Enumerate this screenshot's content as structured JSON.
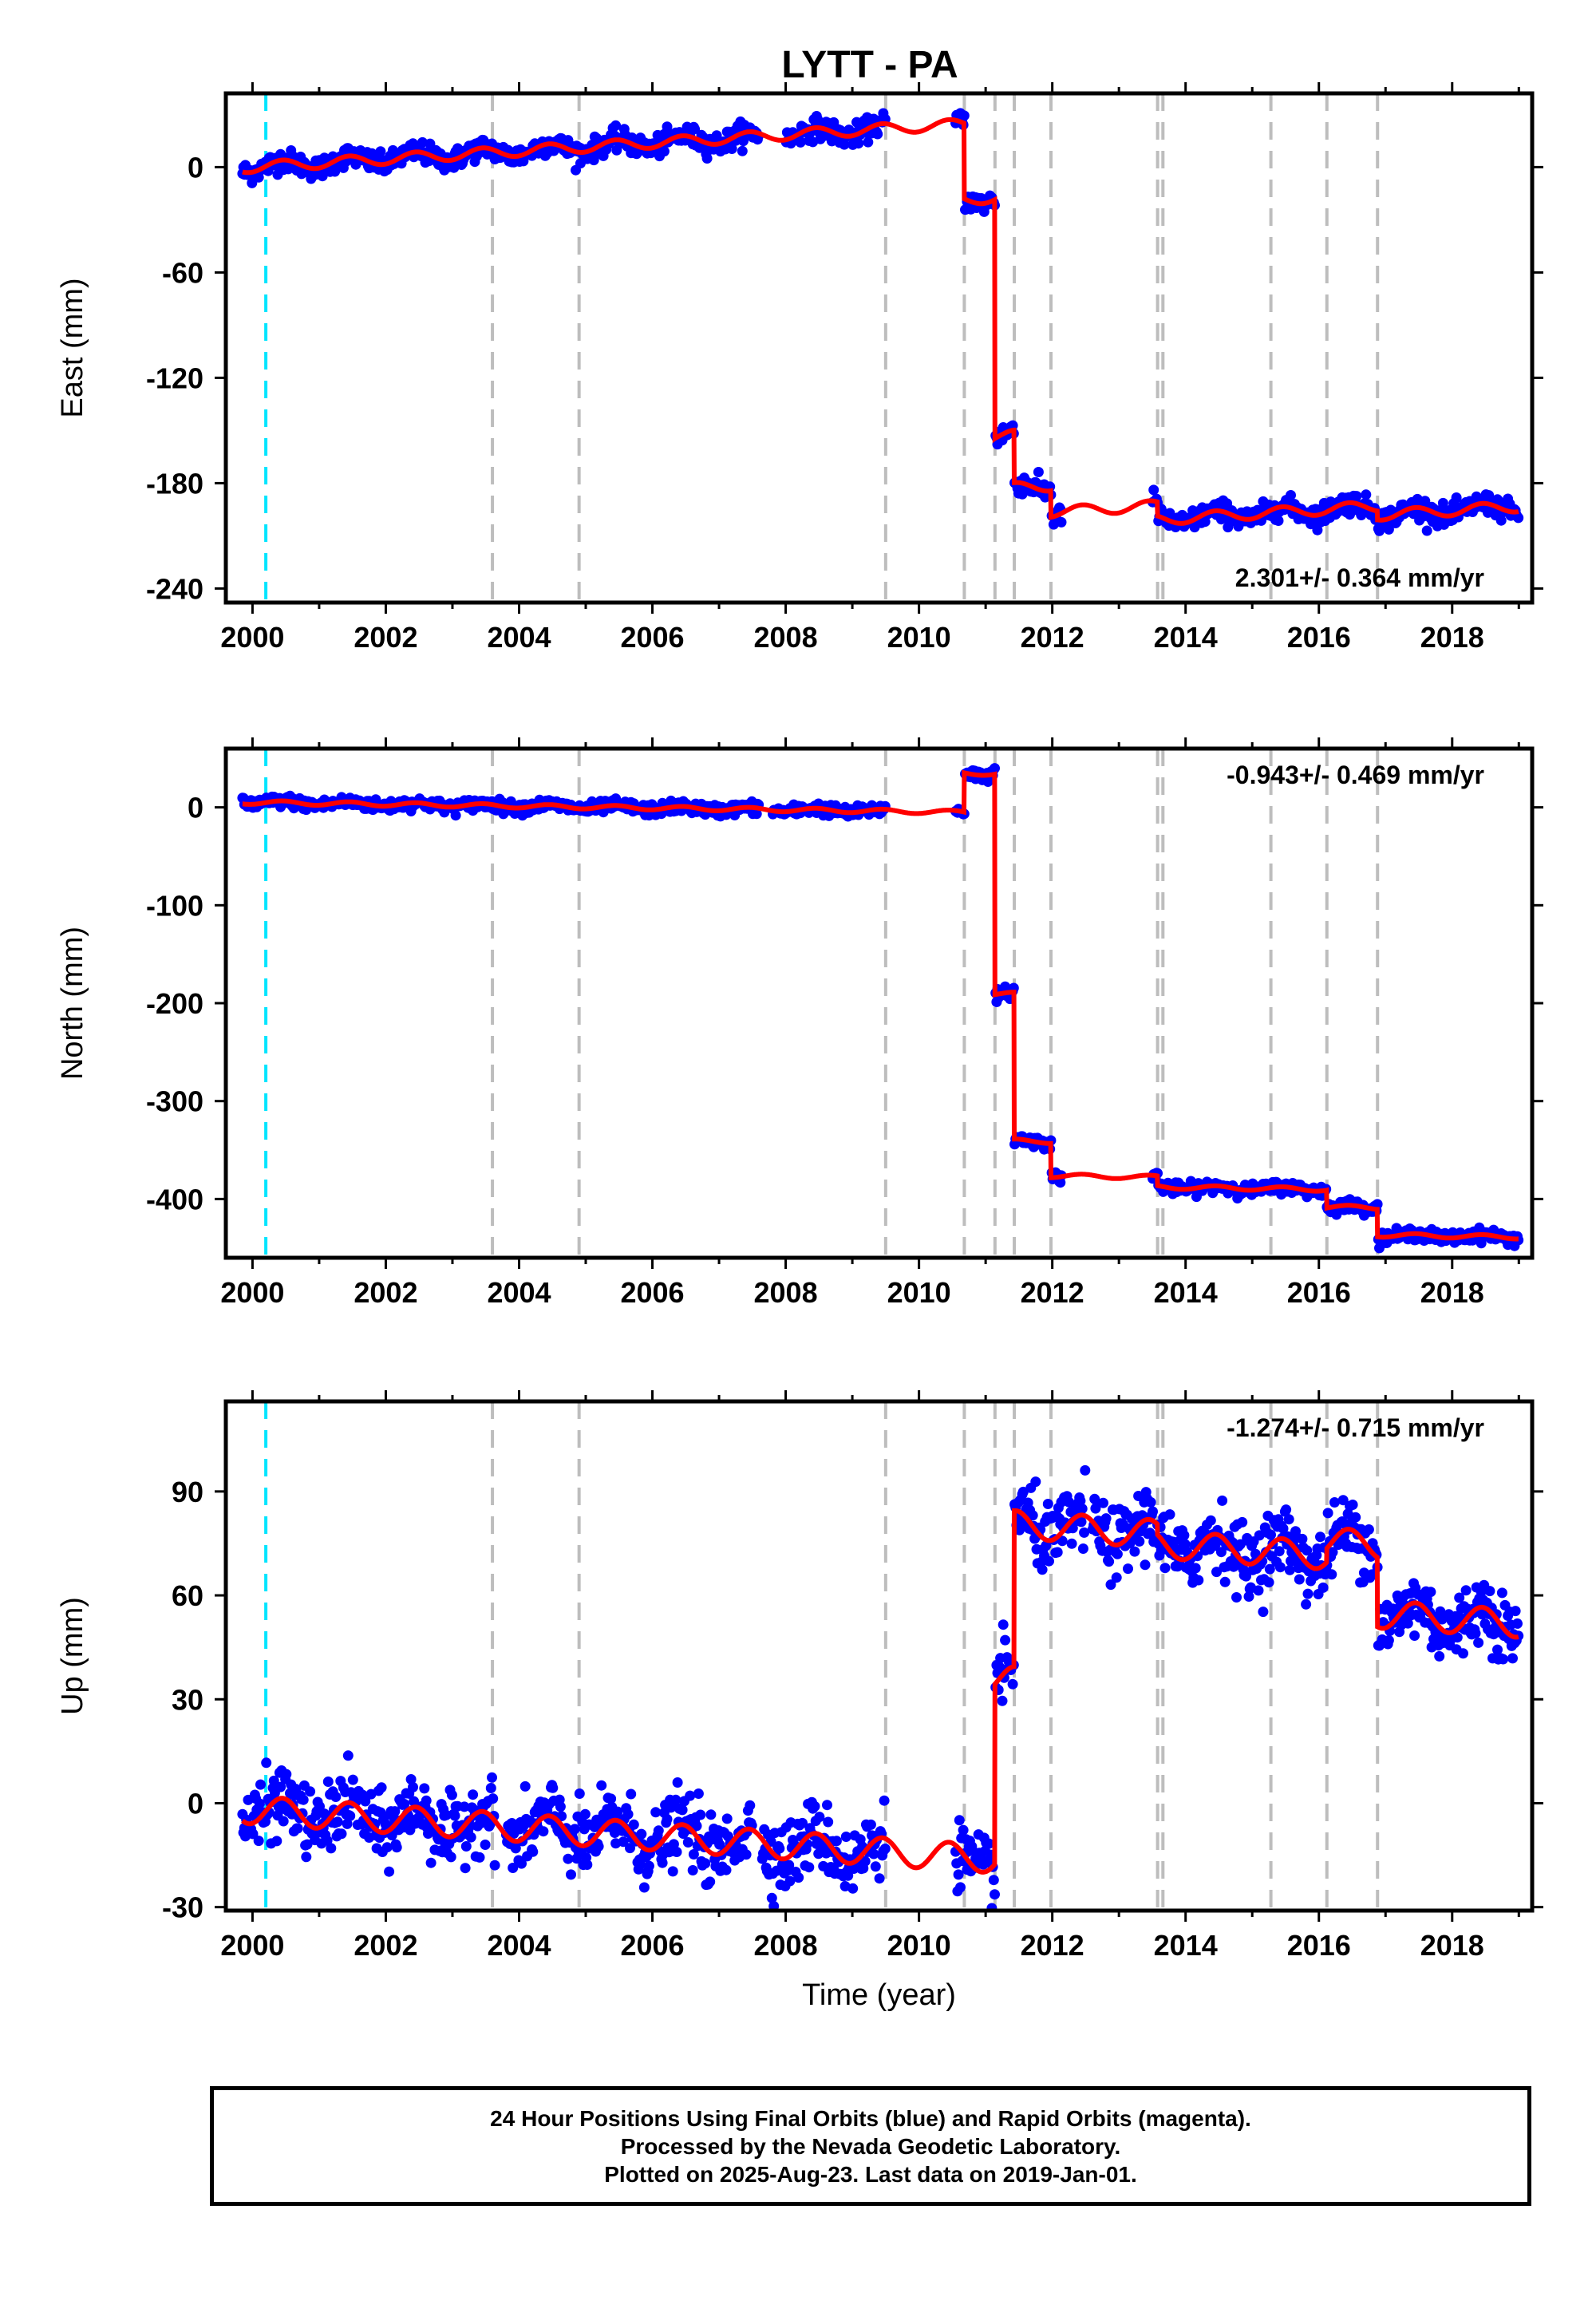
{
  "title": "LYTT - PA",
  "colors": {
    "data": "#0000ff",
    "model": "#ff0000",
    "event_gray": "#bdbdbd",
    "event_cyan": "#00e5ff",
    "frame": "#000000"
  },
  "footer": {
    "line1": "24 Hour Positions Using Final Orbits (blue) and Rapid Orbits (magenta).",
    "line2": "Processed by the Nevada Geodetic Laboratory.",
    "line3": "Plotted on 2025-Aug-23. Last data on 2019-Jan-01."
  },
  "chart_data": [
    {
      "type": "scatter",
      "panel": "east",
      "xlabel": "",
      "ylabel": "East (mm)",
      "xlim": [
        1999.6,
        2019.2
      ],
      "ylim": [
        -248,
        42
      ],
      "xticks": [
        2000,
        2002,
        2004,
        2006,
        2008,
        2010,
        2012,
        2014,
        2016,
        2018
      ],
      "yticks": [
        0,
        -60,
        -120,
        -180,
        -240
      ],
      "annotation": "2.301+/- 0.364 mm/yr",
      "annotation_position": "bottom-right",
      "event_lines": {
        "cyan": [
          2000.2
        ],
        "gray": [
          2003.6,
          2004.9,
          2009.5,
          2010.68,
          2011.14,
          2011.43,
          2011.98,
          2013.58,
          2013.66,
          2015.28,
          2016.12,
          2016.88
        ]
      },
      "model": {
        "name": "model",
        "steps": [
          [
            2010.68,
            -43
          ],
          [
            2011.14,
            -136
          ],
          [
            2011.43,
            -30
          ],
          [
            2011.98,
            -15
          ],
          [
            2013.58,
            -8
          ],
          [
            2016.12,
            0
          ],
          [
            2016.88,
            -5
          ]
        ],
        "rate": 2.3,
        "amplitude": 3,
        "offset": 0
      },
      "data": {
        "name": "daily positions",
        "scatter": 3,
        "gaps": [
          [
            2007.6,
            2008.0
          ],
          [
            2009.5,
            2010.55
          ],
          [
            2012.15,
            2013.5
          ],
          [
            2013.66,
            2013.7
          ]
        ]
      }
    },
    {
      "type": "scatter",
      "panel": "north",
      "xlabel": "",
      "ylabel": "North (mm)",
      "xlim": [
        1999.6,
        2019.2
      ],
      "ylim": [
        -460,
        60
      ],
      "xticks": [
        2000,
        2002,
        2004,
        2006,
        2008,
        2010,
        2012,
        2014,
        2016,
        2018
      ],
      "yticks": [
        0,
        -100,
        -200,
        -300,
        -400
      ],
      "annotation": "-0.943+/- 0.469 mm/yr",
      "annotation_position": "top-right",
      "event_lines": {
        "cyan": [
          2000.2
        ],
        "gray": [
          2003.6,
          2004.9,
          2009.5,
          2010.68,
          2011.14,
          2011.43,
          2011.98,
          2013.58,
          2013.66,
          2015.28,
          2016.12,
          2016.88
        ]
      },
      "model": {
        "name": "model",
        "steps": [
          [
            2010.68,
            40
          ],
          [
            2011.14,
            -225
          ],
          [
            2011.43,
            -150
          ],
          [
            2011.98,
            -35
          ],
          [
            2013.58,
            -10
          ],
          [
            2016.12,
            -18
          ],
          [
            2016.88,
            -28
          ]
        ],
        "rate": -0.94,
        "amplitude": 2,
        "offset": 5
      },
      "data": {
        "name": "daily positions",
        "scatter": 3,
        "gaps": [
          [
            2007.6,
            2007.8
          ],
          [
            2009.5,
            2010.55
          ],
          [
            2012.15,
            2013.5
          ]
        ]
      }
    },
    {
      "type": "scatter",
      "panel": "up",
      "xlabel": "Time (year)",
      "ylabel": "Up (mm)",
      "xlim": [
        1999.6,
        2019.2
      ],
      "ylim": [
        -31,
        116
      ],
      "xticks": [
        2000,
        2002,
        2004,
        2006,
        2008,
        2010,
        2012,
        2014,
        2016,
        2018
      ],
      "yticks": [
        90,
        60,
        30,
        0,
        -30
      ],
      "annotation": "-1.274+/- 0.715 mm/yr",
      "annotation_position": "top-right",
      "event_lines": {
        "cyan": [
          2000.2
        ],
        "gray": [
          2003.6,
          2004.9,
          2009.5,
          2010.68,
          2011.14,
          2011.43,
          2011.98,
          2013.58,
          2013.66,
          2015.28,
          2016.12,
          2016.88
        ]
      },
      "model": {
        "name": "model",
        "steps": [
          [
            2011.14,
            52
          ],
          [
            2011.43,
            45
          ],
          [
            2013.58,
            -3
          ],
          [
            2016.12,
            4
          ],
          [
            2016.88,
            -20
          ]
        ],
        "rate": -1.27,
        "amplitude": 4,
        "offset": -2
      },
      "data": {
        "name": "daily positions",
        "scatter": 5,
        "gaps": [
          [
            2003.65,
            2003.8
          ],
          [
            2007.5,
            2007.65
          ],
          [
            2009.5,
            2010.55
          ],
          [
            2012.5,
            2012.6
          ]
        ]
      }
    }
  ]
}
